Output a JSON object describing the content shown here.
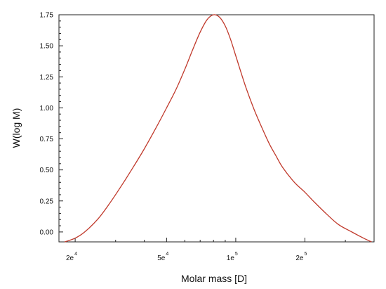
{
  "chart_data": {
    "type": "line",
    "title": "",
    "xlabel": "Molar mass [D]",
    "ylabel": "W(log M)",
    "x_scale": "log",
    "xlim": [
      17000,
      400000
    ],
    "ylim": [
      -0.08,
      1.75
    ],
    "grid": false,
    "y_ticks": [
      {
        "value": 0.0,
        "label": "0.00"
      },
      {
        "value": 0.25,
        "label": "0.25"
      },
      {
        "value": 0.5,
        "label": "0.50"
      },
      {
        "value": 0.75,
        "label": "0.75"
      },
      {
        "value": 1.0,
        "label": "1.00"
      },
      {
        "value": 1.25,
        "label": "1.25"
      },
      {
        "value": 1.5,
        "label": "1.50"
      },
      {
        "value": 1.75,
        "label": "1.75"
      }
    ],
    "x_ticks": [
      {
        "value": 20000,
        "mantissa": "2e",
        "exponent": "4"
      },
      {
        "value": 50000,
        "mantissa": "5e",
        "exponent": "4"
      },
      {
        "value": 100000,
        "mantissa": "1e",
        "exponent": "5"
      },
      {
        "value": 200000,
        "mantissa": "2e",
        "exponent": "5"
      }
    ],
    "series": [
      {
        "color": "#c0392b",
        "x": [
          18000,
          20000,
          22000,
          25000,
          28000,
          32000,
          36000,
          40000,
          45000,
          50000,
          55000,
          60000,
          65000,
          70000,
          75000,
          80000,
          85000,
          90000,
          95000,
          100000,
          110000,
          120000,
          130000,
          140000,
          150000,
          160000,
          180000,
          200000,
          220000,
          250000,
          280000,
          320000,
          360000,
          390000
        ],
        "y": [
          -0.08,
          -0.05,
          0.0,
          0.1,
          0.22,
          0.38,
          0.53,
          0.67,
          0.84,
          1.0,
          1.15,
          1.31,
          1.47,
          1.61,
          1.71,
          1.75,
          1.73,
          1.66,
          1.55,
          1.42,
          1.18,
          0.99,
          0.84,
          0.71,
          0.61,
          0.52,
          0.4,
          0.32,
          0.24,
          0.14,
          0.06,
          0.0,
          -0.05,
          -0.08
        ]
      }
    ]
  }
}
